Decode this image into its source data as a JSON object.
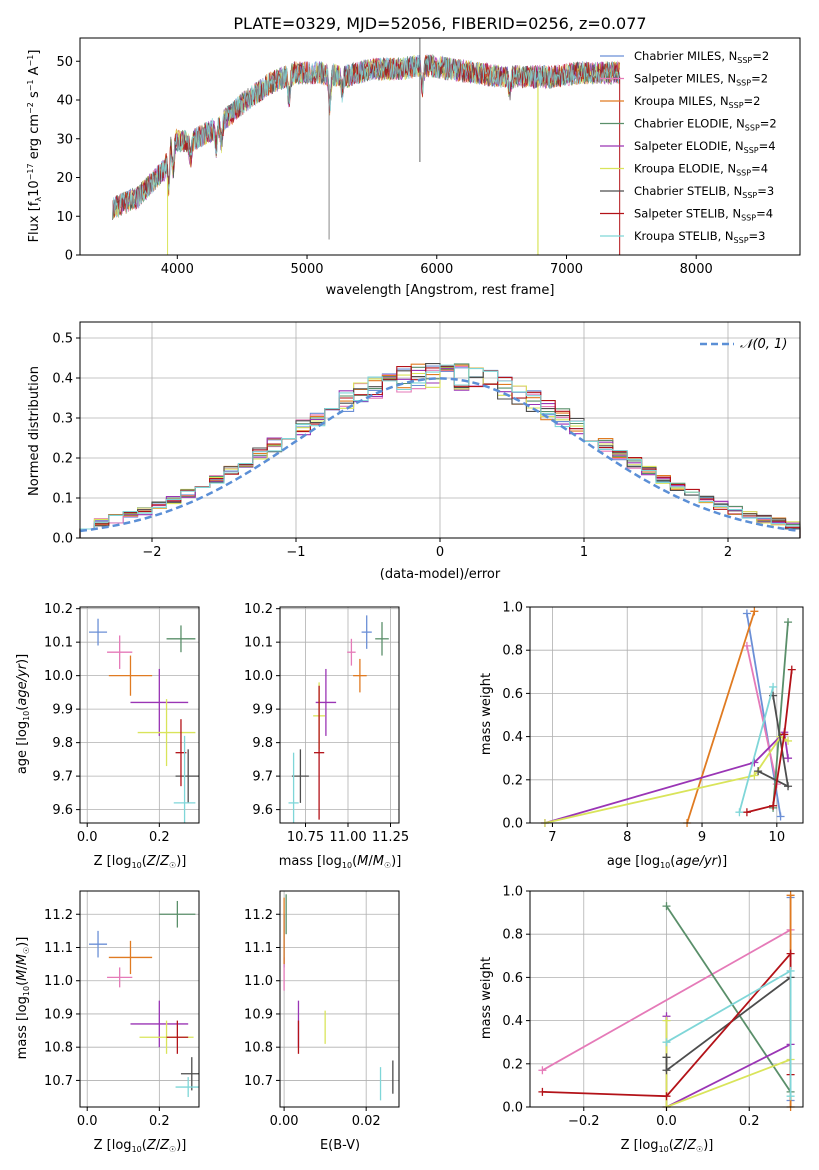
{
  "figure": {
    "title": "PLATE=0329, MJD=52056, FIBERID=0256, z=0.077"
  },
  "series_colors": [
    "#6b8fd6",
    "#e57ab8",
    "#e07b22",
    "#5a8f6a",
    "#9a35b5",
    "#d9e45a",
    "#4d4d4d",
    "#b31218",
    "#7fd6d8"
  ],
  "chart_data": [
    {
      "id": "spectrum",
      "type": "line",
      "title": "PLATE=0329, MJD=52056, FIBERID=0256, z=0.077",
      "xlabel": "wavelength [Angstrom, rest frame]",
      "ylabel": "Flux [f_λ10^-17 erg cm^-2 s^-1 A^-1]",
      "xlim": [
        3250,
        8800
      ],
      "ylim": [
        0,
        56
      ],
      "xticks": [
        4000,
        5000,
        6000,
        7000,
        8000
      ],
      "yticks": [
        0,
        10,
        20,
        30,
        40,
        50
      ],
      "grid": false,
      "legend_position": "right",
      "series": [
        {
          "name": "Chabrier MILES, N_SSP=2",
          "color": "#6b8fd6"
        },
        {
          "name": "Salpeter MILES, N_SSP=2",
          "color": "#e57ab8"
        },
        {
          "name": "Kroupa MILES, N_SSP=2",
          "color": "#e07b22"
        },
        {
          "name": "Chabrier ELODIE, N_SSP=2",
          "color": "#5a8f6a"
        },
        {
          "name": "Salpeter ELODIE, N_SSP=4",
          "color": "#9a35b5"
        },
        {
          "name": "Kroupa ELODIE, N_SSP=4",
          "color": "#d9e45a"
        },
        {
          "name": "Chabrier STELIB, N_SSP=3",
          "color": "#4d4d4d"
        },
        {
          "name": "Salpeter STELIB, N_SSP=4",
          "color": "#b31218"
        },
        {
          "name": "Kroupa STELIB, N_SSP=3",
          "color": "#7fd6d8"
        }
      ],
      "continuum": [
        [
          3500,
          12
        ],
        [
          3700,
          15
        ],
        [
          3900,
          22
        ],
        [
          3950,
          30
        ],
        [
          4100,
          29
        ],
        [
          4300,
          33
        ],
        [
          4500,
          39
        ],
        [
          4700,
          44
        ],
        [
          4900,
          47
        ],
        [
          5100,
          47
        ],
        [
          5300,
          46
        ],
        [
          5500,
          48
        ],
        [
          5700,
          48
        ],
        [
          5900,
          49
        ],
        [
          6100,
          48
        ],
        [
          6300,
          47
        ],
        [
          6500,
          46
        ],
        [
          6700,
          46
        ],
        [
          6900,
          46
        ],
        [
          7100,
          47
        ],
        [
          7300,
          47
        ],
        [
          7400,
          47
        ]
      ]
    },
    {
      "id": "residual-histogram",
      "type": "histogram",
      "xlabel": "(data-model)/error",
      "ylabel": "Normed distribution",
      "xlim": [
        -2.5,
        2.5
      ],
      "ylim": [
        0,
        0.54
      ],
      "xticks": [
        -2,
        -1,
        0,
        1,
        2
      ],
      "yticks": [
        0.0,
        0.1,
        0.2,
        0.3,
        0.4,
        0.5
      ],
      "grid": true,
      "legend_position": "top-right",
      "legend": "N(0,1)",
      "bin_width": 0.1,
      "bin_start": -2.5,
      "reference_curve": {
        "name": "N(0,1)",
        "mean": 0,
        "sigma": 1,
        "color": "#5b8fd6",
        "style": "dashed"
      }
    },
    {
      "id": "age-vs-Z",
      "type": "scatter",
      "errorbars": true,
      "xlabel": "Z [log10(Z/Z☉)]",
      "ylabel": "age [log10(age/yr)]",
      "xlim": [
        -0.02,
        0.31
      ],
      "ylim": [
        9.56,
        10.205
      ],
      "xticks": [
        0.0,
        0.2
      ],
      "yticks": [
        9.6,
        9.7,
        9.8,
        9.9,
        10.0,
        10.1,
        10.2
      ],
      "grid": true,
      "points": [
        {
          "x": 0.03,
          "y": 10.13,
          "xerr": 0.025,
          "yerr": 0.04
        },
        {
          "x": 0.09,
          "y": 10.07,
          "xerr": 0.035,
          "yerr": 0.05
        },
        {
          "x": 0.12,
          "y": 10.0,
          "xerr": 0.06,
          "yerr": 0.06
        },
        {
          "x": 0.26,
          "y": 10.11,
          "xerr": 0.04,
          "yerr": 0.04
        },
        {
          "x": 0.2,
          "y": 9.92,
          "xerr": 0.08,
          "yerr": 0.1
        },
        {
          "x": 0.22,
          "y": 9.83,
          "xerr": 0.08,
          "yerr": 0.1
        },
        {
          "x": 0.28,
          "y": 9.7,
          "xerr": 0.035,
          "yerr": 0.08
        },
        {
          "x": 0.26,
          "y": 9.77,
          "xerr": 0.015,
          "yerr": 0.1
        },
        {
          "x": 0.27,
          "y": 9.62,
          "xerr": 0.03,
          "yerr": 0.2
        }
      ]
    },
    {
      "id": "age-vs-mass",
      "type": "scatter",
      "errorbars": true,
      "xlabel": "mass [log10(M/M☉)]",
      "ylabel": "",
      "xlim": [
        10.6,
        11.3
      ],
      "ylim": [
        9.56,
        10.205
      ],
      "xticks": [
        10.75,
        11.0,
        11.25
      ],
      "yticks": [
        9.6,
        9.7,
        9.8,
        9.9,
        10.0,
        10.1,
        10.2
      ],
      "grid": true,
      "points": [
        {
          "x": 11.11,
          "y": 10.13,
          "xerr": 0.03,
          "yerr": 0.05
        },
        {
          "x": 11.02,
          "y": 10.07,
          "xerr": 0.025,
          "yerr": 0.04
        },
        {
          "x": 11.07,
          "y": 10.0,
          "xerr": 0.04,
          "yerr": 0.05
        },
        {
          "x": 11.2,
          "y": 10.11,
          "xerr": 0.04,
          "yerr": 0.05
        },
        {
          "x": 10.87,
          "y": 9.92,
          "xerr": 0.06,
          "yerr": 0.1
        },
        {
          "x": 10.83,
          "y": 9.88,
          "xerr": 0.035,
          "yerr": 0.1
        },
        {
          "x": 10.72,
          "y": 9.7,
          "xerr": 0.05,
          "yerr": 0.08
        },
        {
          "x": 10.83,
          "y": 9.77,
          "xerr": 0.03,
          "yerr": 0.2
        },
        {
          "x": 10.68,
          "y": 9.62,
          "xerr": 0.03,
          "yerr": 0.15
        }
      ]
    },
    {
      "id": "weight-vs-age",
      "type": "line",
      "xlabel": "age [log10(age/yr)]",
      "ylabel": "mass weight",
      "xlim": [
        6.7,
        10.35
      ],
      "ylim": [
        0,
        1.0
      ],
      "xticks": [
        7,
        8,
        9,
        10
      ],
      "yticks": [
        0.0,
        0.2,
        0.4,
        0.6,
        0.8,
        1.0
      ],
      "grid": true,
      "series": [
        {
          "points": [
            [
              9.6,
              0.97
            ],
            [
              10.05,
              0.03
            ]
          ]
        },
        {
          "points": [
            [
              9.6,
              0.82
            ],
            [
              10.0,
              0.18
            ]
          ]
        },
        {
          "points": [
            [
              8.8,
              0.0
            ],
            [
              9.7,
              0.98
            ]
          ]
        },
        {
          "points": [
            [
              9.95,
              0.07
            ],
            [
              10.15,
              0.93
            ]
          ]
        },
        {
          "points": [
            [
              6.9,
              0.0
            ],
            [
              9.7,
              0.28
            ],
            [
              10.1,
              0.42
            ],
            [
              10.15,
              0.3
            ]
          ]
        },
        {
          "points": [
            [
              6.9,
              0.0
            ],
            [
              9.7,
              0.22
            ],
            [
              10.05,
              0.4
            ],
            [
              10.15,
              0.38
            ]
          ]
        },
        {
          "points": [
            [
              9.95,
              0.59
            ],
            [
              10.15,
              0.17
            ],
            [
              9.75,
              0.24
            ]
          ]
        },
        {
          "points": [
            [
              9.6,
              0.05
            ],
            [
              9.95,
              0.08
            ],
            [
              10.1,
              0.41
            ],
            [
              10.2,
              0.71
            ]
          ]
        },
        {
          "points": [
            [
              9.5,
              0.05
            ],
            [
              9.95,
              0.63
            ]
          ]
        }
      ]
    },
    {
      "id": "mass-vs-Z",
      "type": "scatter",
      "errorbars": true,
      "xlabel": "Z [log10(Z/Z☉)]",
      "ylabel": "mass [log10(M/M☉)]",
      "xlim": [
        -0.02,
        0.31
      ],
      "ylim": [
        10.62,
        11.27
      ],
      "xticks": [
        0.0,
        0.2
      ],
      "yticks": [
        10.7,
        10.8,
        10.9,
        11.0,
        11.1,
        11.2
      ],
      "grid": true,
      "points": [
        {
          "x": 0.03,
          "y": 11.11,
          "xerr": 0.025,
          "yerr": 0.04
        },
        {
          "x": 0.09,
          "y": 11.01,
          "xerr": 0.035,
          "yerr": 0.03
        },
        {
          "x": 0.12,
          "y": 11.07,
          "xerr": 0.06,
          "yerr": 0.05
        },
        {
          "x": 0.25,
          "y": 11.2,
          "xerr": 0.05,
          "yerr": 0.04
        },
        {
          "x": 0.2,
          "y": 10.87,
          "xerr": 0.08,
          "yerr": 0.07
        },
        {
          "x": 0.22,
          "y": 10.83,
          "xerr": 0.075,
          "yerr": 0.05
        },
        {
          "x": 0.29,
          "y": 10.72,
          "xerr": 0.03,
          "yerr": 0.05
        },
        {
          "x": 0.25,
          "y": 10.83,
          "xerr": 0.03,
          "yerr": 0.05
        },
        {
          "x": 0.28,
          "y": 10.68,
          "xerr": 0.035,
          "yerr": 0.03
        }
      ]
    },
    {
      "id": "mass-vs-EBV",
      "type": "scatter",
      "errorbars": true,
      "xlabel": "E(B-V)",
      "ylabel": "",
      "xlim": [
        -0.001,
        0.028
      ],
      "ylim": [
        10.62,
        11.27
      ],
      "xticks": [
        0.0,
        0.02
      ],
      "yticks": [
        10.7,
        10.8,
        10.9,
        11.0,
        11.1,
        11.2
      ],
      "grid": true,
      "points": [
        {
          "x": 0.0,
          "y": 11.12,
          "xerr": 0,
          "yerr": 0.08
        },
        {
          "x": 0.0,
          "y": 11.02,
          "xerr": 0,
          "yerr": 0.05
        },
        {
          "x": 0.0,
          "y": 11.15,
          "xerr": 0,
          "yerr": 0.1
        },
        {
          "x": 0.0005,
          "y": 11.2,
          "xerr": 0,
          "yerr": 0.06
        },
        {
          "x": 0.0035,
          "y": 10.87,
          "xerr": 0,
          "yerr": 0.07
        },
        {
          "x": 0.01,
          "y": 10.86,
          "xerr": 0,
          "yerr": 0.05
        },
        {
          "x": 0.0265,
          "y": 10.71,
          "xerr": 0,
          "yerr": 0.05
        },
        {
          "x": 0.0035,
          "y": 10.83,
          "xerr": 0,
          "yerr": 0.05
        },
        {
          "x": 0.0235,
          "y": 10.69,
          "xerr": 0,
          "yerr": 0.05
        }
      ]
    },
    {
      "id": "weight-vs-Z",
      "type": "line",
      "xlabel": "Z [log10(Z/Z☉)]",
      "ylabel": "mass weight",
      "xlim": [
        -0.33,
        0.33
      ],
      "ylim": [
        0,
        1.0
      ],
      "xticks": [
        -0.2,
        0.0,
        0.2
      ],
      "yticks": [
        0.0,
        0.2,
        0.4,
        0.6,
        0.8,
        1.0
      ],
      "grid": true,
      "series": [
        {
          "points": [
            [
              0.3,
              0.97
            ],
            [
              0.3,
              0.03
            ]
          ]
        },
        {
          "points": [
            [
              -0.3,
              0.17
            ],
            [
              0.3,
              0.82
            ]
          ]
        },
        {
          "points": [
            [
              0.3,
              0.98
            ],
            [
              0.3,
              0.0
            ]
          ]
        },
        {
          "points": [
            [
              0.0,
              0.93
            ],
            [
              0.3,
              0.07
            ]
          ]
        },
        {
          "points": [
            [
              0.0,
              0.42
            ],
            [
              0.0,
              0.0
            ],
            [
              0.3,
              0.29
            ]
          ]
        },
        {
          "points": [
            [
              0.0,
              0.4
            ],
            [
              0.0,
              0.0
            ],
            [
              0.3,
              0.22
            ]
          ]
        },
        {
          "points": [
            [
              0.0,
              0.23
            ],
            [
              0.0,
              0.17
            ],
            [
              0.3,
              0.6
            ]
          ]
        },
        {
          "points": [
            [
              -0.3,
              0.07
            ],
            [
              0.0,
              0.05
            ],
            [
              0.3,
              0.71
            ],
            [
              0.3,
              0.15
            ]
          ]
        },
        {
          "points": [
            [
              0.0,
              0.3
            ],
            [
              0.3,
              0.63
            ],
            [
              0.3,
              0.05
            ]
          ]
        }
      ]
    }
  ]
}
